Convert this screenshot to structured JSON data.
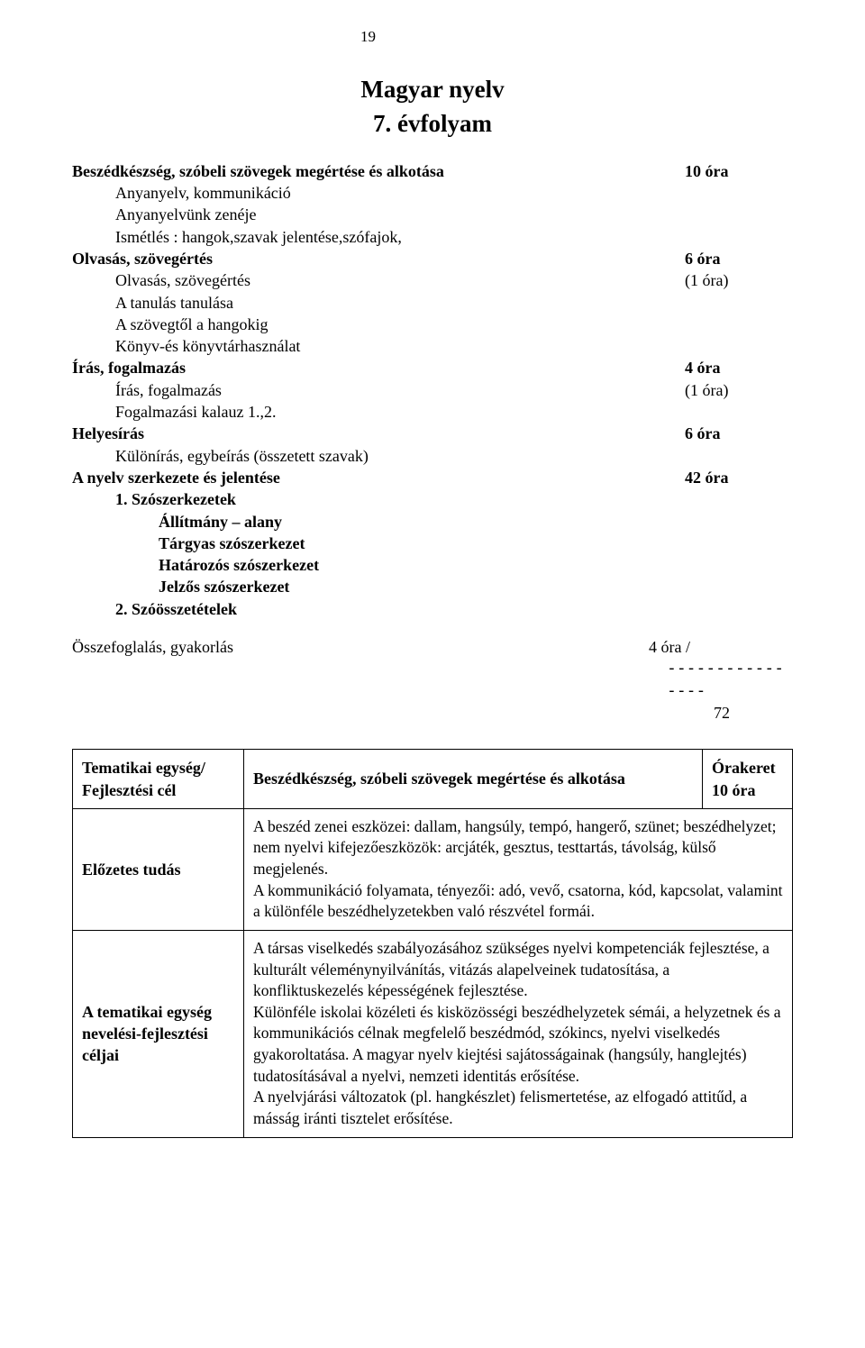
{
  "page_number": "19",
  "title_line1": "Magyar nyelv",
  "title_line2": "7. évfolyam",
  "outline": {
    "r1": {
      "left": "Beszédkészség, szóbeli szövegek megértése és alkotása",
      "right": "10 óra"
    },
    "r2": {
      "left": "Anyanyelv, kommunikáció"
    },
    "r3": {
      "left": "Anyanyelvünk zenéje"
    },
    "r4": {
      "left": "Ismétlés : hangok,szavak jelentése,szófajok,"
    },
    "r5": {
      "left": "Olvasás, szövegértés",
      "right": "6 óra"
    },
    "r6": {
      "left": "Olvasás, szövegértés",
      "right": "(1 óra)"
    },
    "r7": {
      "left": "A tanulás tanulása"
    },
    "r8": {
      "left": "A szövegtől a hangokig"
    },
    "r9": {
      "left": "Könyv-és könyvtárhasználat"
    },
    "r10": {
      "left": "Írás, fogalmazás",
      "right": "4 óra"
    },
    "r11": {
      "left": "Írás, fogalmazás",
      "right": "(1 óra)"
    },
    "r12": {
      "left": "Fogalmazási kalauz 1.,2."
    },
    "r13": {
      "left": "Helyesírás",
      "right": "6 óra"
    },
    "r14": {
      "left": "Különírás, egybeírás (összetett szavak)"
    },
    "r15": {
      "left": "A nyelv szerkezete és jelentése",
      "right": "42 óra"
    },
    "r16": {
      "left": "1.  Szószerkezetek"
    },
    "r17": {
      "left": "Állítmány – alany"
    },
    "r18": {
      "left": "Tárgyas szószerkezet"
    },
    "r19": {
      "left": "Határozós szószerkezet"
    },
    "r20": {
      "left": "Jelzős szószerkezet"
    },
    "r21": {
      "left": "2.  Szóösszetételek"
    }
  },
  "summary": {
    "label": "Összefoglalás, gyakorlás",
    "hours": "4 óra /",
    "dashes": "----------------",
    "total": "72"
  },
  "table": {
    "row1": {
      "label": "Tematikai egység/ Fejlesztési cél",
      "heading": "Beszédkészség, szóbeli szövegek megértése és alkotása",
      "orakeret_label": "Órakeret",
      "orakeret_value": "10 óra"
    },
    "row2": {
      "label": "Előzetes tudás",
      "body": "A beszéd zenei eszközei: dallam, hangsúly, tempó, hangerő, szünet; beszédhelyzet; nem nyelvi kifejezőeszközök: arcjáték, gesztus, testtartás, távolság, külső megjelenés.\nA kommunikáció folyamata, tényezői: adó, vevő, csatorna, kód, kapcsolat, valamint a különféle beszédhelyzetekben való részvétel formái."
    },
    "row3": {
      "label": "A tematikai egység nevelési-fejlesztési céljai",
      "body": "A társas viselkedés szabályozásához szükséges nyelvi kompetenciák fejlesztése, a kulturált véleménynyilvánítás, vitázás alapelveinek tudatosítása, a konfliktuskezelés képességének fejlesztése.\nKülönféle iskolai közéleti és kisközösségi beszédhelyzetek sémái, a helyzetnek és a kommunikációs célnak megfelelő beszédmód, szókincs, nyelvi viselkedés gyakoroltatása. A magyar nyelv kiejtési sajátosságainak (hangsúly, hanglejtés) tudatosításával a nyelvi, nemzeti identitás erősítése.\nA nyelvjárási változatok (pl. hangkészlet) felismertetése, az elfogadó attitűd, a másság iránti tisztelet erősítése."
    }
  }
}
